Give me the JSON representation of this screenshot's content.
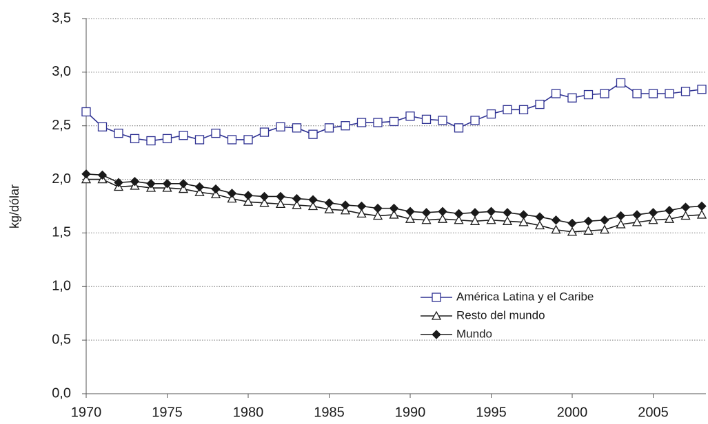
{
  "chart_data": {
    "type": "line",
    "y_label": "kg/dólar",
    "x": [
      1970,
      1971,
      1972,
      1973,
      1974,
      1975,
      1976,
      1977,
      1978,
      1979,
      1980,
      1981,
      1982,
      1983,
      1984,
      1985,
      1986,
      1987,
      1988,
      1989,
      1990,
      1991,
      1992,
      1993,
      1994,
      1995,
      1996,
      1997,
      1998,
      1999,
      2000,
      2001,
      2002,
      2003,
      2004,
      2005,
      2006,
      2007,
      2008
    ],
    "xlim": [
      1970,
      2008
    ],
    "xticks": [
      1970,
      1975,
      1980,
      1985,
      1990,
      1995,
      2000,
      2005
    ],
    "ylim": [
      0,
      3.5
    ],
    "yticks": [
      {
        "value": 0,
        "label": "0,0"
      },
      {
        "value": 0.5,
        "label": "0,5"
      },
      {
        "value": 1,
        "label": "1,0"
      },
      {
        "value": 1.5,
        "label": "1,5"
      },
      {
        "value": 2,
        "label": "2,0"
      },
      {
        "value": 2.5,
        "label": "2,5"
      },
      {
        "value": 3,
        "label": "3,0"
      },
      {
        "value": 3.5,
        "label": "3,5"
      }
    ],
    "grid": true,
    "series": [
      {
        "name": "América Latina y el Caribe",
        "color": "#2e3192",
        "marker": "square",
        "values": [
          2.63,
          2.49,
          2.43,
          2.38,
          2.36,
          2.38,
          2.41,
          2.37,
          2.43,
          2.37,
          2.37,
          2.44,
          2.49,
          2.48,
          2.42,
          2.48,
          2.5,
          2.53,
          2.53,
          2.54,
          2.59,
          2.56,
          2.55,
          2.48,
          2.55,
          2.61,
          2.65,
          2.65,
          2.7,
          2.8,
          2.76,
          2.79,
          2.8,
          2.9,
          2.8,
          2.8,
          2.8,
          2.82,
          2.84
        ]
      },
      {
        "name": "Resto del mundo",
        "color": "#1a1a1a",
        "marker": "triangle",
        "values": [
          2.0,
          2.0,
          1.93,
          1.94,
          1.92,
          1.92,
          1.91,
          1.88,
          1.86,
          1.82,
          1.79,
          1.78,
          1.77,
          1.76,
          1.75,
          1.72,
          1.71,
          1.68,
          1.66,
          1.67,
          1.63,
          1.62,
          1.63,
          1.62,
          1.61,
          1.62,
          1.61,
          1.6,
          1.57,
          1.53,
          1.51,
          1.52,
          1.53,
          1.58,
          1.6,
          1.62,
          1.63,
          1.66,
          1.67
        ]
      },
      {
        "name": "Mundo",
        "color": "#1a1a1a",
        "marker": "diamond",
        "values": [
          2.05,
          2.04,
          1.97,
          1.98,
          1.96,
          1.96,
          1.96,
          1.93,
          1.91,
          1.87,
          1.85,
          1.84,
          1.84,
          1.82,
          1.81,
          1.78,
          1.76,
          1.75,
          1.73,
          1.73,
          1.7,
          1.69,
          1.7,
          1.68,
          1.69,
          1.7,
          1.69,
          1.67,
          1.65,
          1.62,
          1.59,
          1.61,
          1.62,
          1.66,
          1.67,
          1.69,
          1.71,
          1.74,
          1.75
        ]
      }
    ]
  }
}
